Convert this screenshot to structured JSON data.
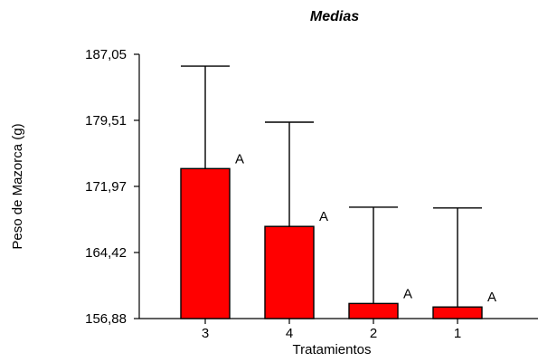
{
  "chart_data": {
    "type": "bar",
    "title": "Medias",
    "xlabel": "Tratamientos",
    "ylabel": "Peso de Mazorca (g)",
    "categories": [
      "3",
      "4",
      "2",
      "1"
    ],
    "values": [
      174.0,
      167.4,
      158.6,
      158.2
    ],
    "error_upper": [
      185.7,
      179.3,
      169.6,
      169.5
    ],
    "letters": [
      "A",
      "A",
      "A",
      "A"
    ],
    "y_ticks": [
      "156,88",
      "164,42",
      "171,97",
      "179,51",
      "187,05"
    ],
    "y_tick_values": [
      156.88,
      164.42,
      171.97,
      179.51,
      187.05
    ],
    "ylim": [
      156.88,
      187.05
    ],
    "grid": false,
    "colors": {
      "bar": "#ff0000",
      "bar_stroke": "#000000"
    }
  }
}
